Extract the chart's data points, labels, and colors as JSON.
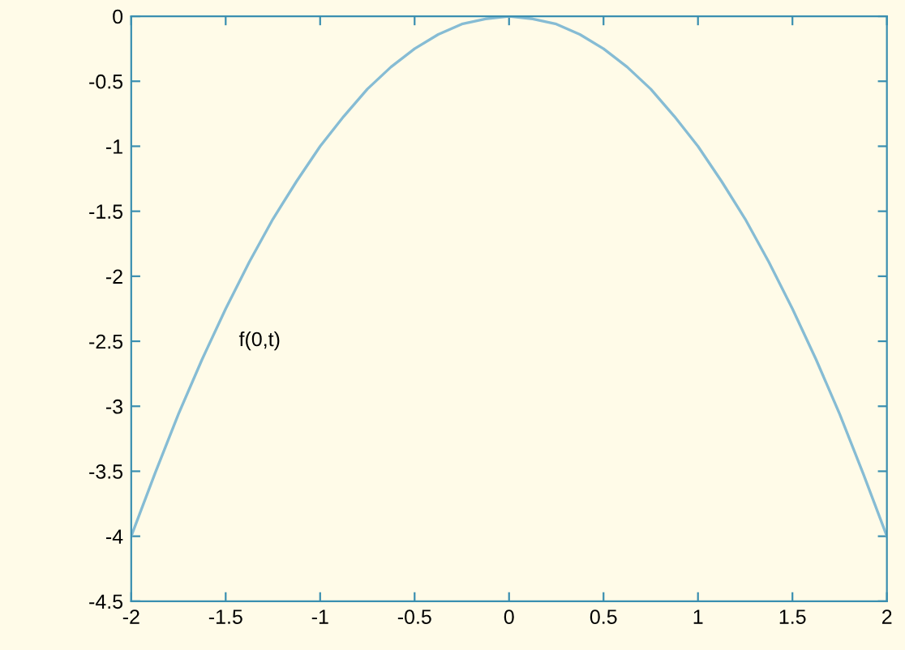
{
  "chart_data": {
    "type": "line",
    "x": [
      -2,
      -1.875,
      -1.75,
      -1.625,
      -1.5,
      -1.375,
      -1.25,
      -1.125,
      -1,
      -0.875,
      -0.75,
      -0.625,
      -0.5,
      -0.375,
      -0.25,
      -0.125,
      0,
      0.125,
      0.25,
      0.375,
      0.5,
      0.625,
      0.75,
      0.875,
      1,
      1.125,
      1.25,
      1.375,
      1.5,
      1.625,
      1.75,
      1.875,
      2
    ],
    "series": [
      {
        "color": "#86bcd4",
        "values": [
          -4,
          -3.52,
          -3.06,
          -2.64,
          -2.25,
          -1.89,
          -1.56,
          -1.27,
          -1,
          -0.77,
          -0.56,
          -0.39,
          -0.25,
          -0.14,
          -0.06,
          -0.02,
          0,
          -0.02,
          -0.06,
          -0.14,
          -0.25,
          -0.39,
          -0.56,
          -0.77,
          -1,
          -1.27,
          -1.56,
          -1.89,
          -2.25,
          -2.64,
          -3.06,
          -3.52,
          -4
        ]
      }
    ],
    "annotations": [
      "f(0,t)"
    ],
    "xlim": [
      -2,
      2
    ],
    "ylim": [
      -4.5,
      0
    ],
    "xticks": [
      -2,
      -1.5,
      -1,
      -0.5,
      0,
      0.5,
      1,
      1.5,
      2
    ],
    "yticks": [
      -4.5,
      -4,
      -3.5,
      -3,
      -2.5,
      -2,
      -1.5,
      -1,
      -0.5,
      0
    ],
    "grid": false,
    "legend": false,
    "marker": "none",
    "line_style": "solid"
  }
}
